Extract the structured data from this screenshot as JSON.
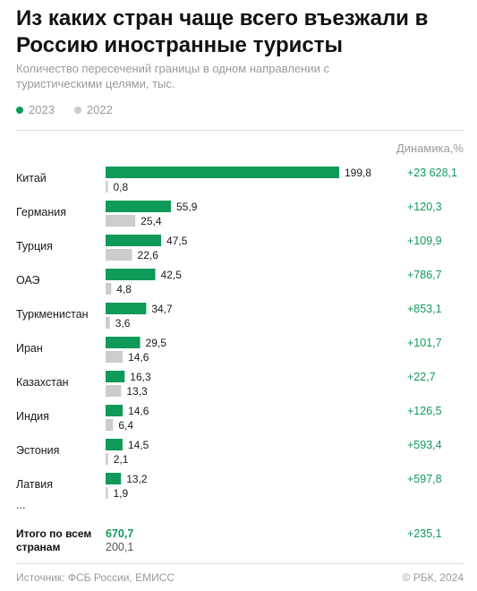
{
  "header": {
    "title": "Из каких стран чаще всего въезжали в Россию иностранные туристы",
    "subtitle": "Количество пересечений границы в одном направлении с туристическими целями, тыс."
  },
  "legend": [
    {
      "label": "2023",
      "color": "#0f9a5a"
    },
    {
      "label": "2022",
      "color": "#cccccc"
    }
  ],
  "dynamics_header": "Динамика,%",
  "chart_data": {
    "type": "bar",
    "orientation": "horizontal",
    "categories": [
      "Китай",
      "Германия",
      "Турция",
      "ОАЭ",
      "Туркменистан",
      "Иран",
      "Казахстан",
      "Индия",
      "Эстония",
      "Латвия"
    ],
    "series": [
      {
        "name": "2023",
        "color": "#0f9a5a",
        "values": [
          199.8,
          55.9,
          47.5,
          42.5,
          34.7,
          29.5,
          16.3,
          14.6,
          14.5,
          13.2
        ],
        "labels": [
          "199,8",
          "55,9",
          "47,5",
          "42,5",
          "34,7",
          "29,5",
          "16,3",
          "14,6",
          "14,5",
          "13,2"
        ]
      },
      {
        "name": "2022",
        "color": "#cccccc",
        "values": [
          0.8,
          25.4,
          22.6,
          4.8,
          3.6,
          14.6,
          13.3,
          6.4,
          2.1,
          1.9
        ],
        "labels": [
          "0,8",
          "25,4",
          "22,6",
          "4,8",
          "3,6",
          "14,6",
          "13,3",
          "6,4",
          "2,1",
          "1,9"
        ]
      }
    ],
    "dynamics": [
      "+23 628,1",
      "+120,3",
      "+109,9",
      "+786,7",
      "+853,1",
      "+101,7",
      "+22,7",
      "+126,5",
      "+593,4",
      "+597,8"
    ],
    "ellipsis": "...",
    "xlim": [
      0,
      199.8
    ],
    "grid": false
  },
  "total": {
    "label": "Итого по всем странам",
    "value_2023": "670,7",
    "value_2022": "200,1",
    "dynamics": "+235,1"
  },
  "footer": {
    "source": "Источник: ФСБ России, ЕМИСС",
    "copyright": "© РБК, 2024"
  }
}
